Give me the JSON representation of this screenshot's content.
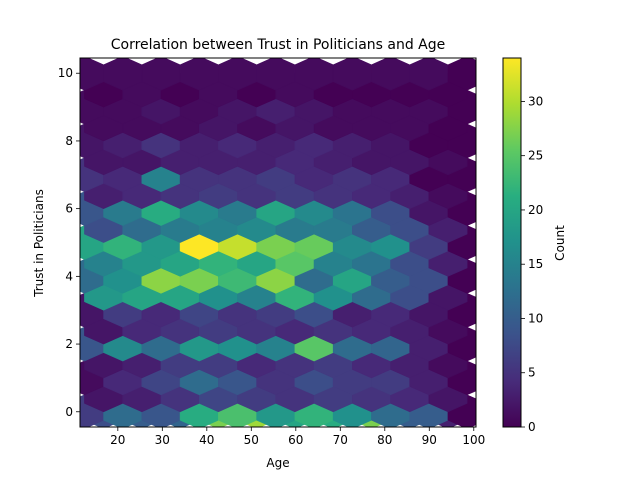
{
  "chart_data": {
    "type": "hexbin",
    "title": "Correlation between Trust in Politicians and Age",
    "xlabel": "Age",
    "ylabel": "Trust in Politicians",
    "xlim": [
      11.5,
      100.5
    ],
    "ylim": [
      -0.45,
      10.45
    ],
    "xticks": [
      20,
      30,
      40,
      50,
      60,
      70,
      80,
      90,
      100
    ],
    "yticks": [
      0,
      2,
      4,
      6,
      8,
      10
    ],
    "grid": false,
    "colormap": "viridis",
    "colorbar": {
      "label": "Count",
      "min": 0,
      "max": 34,
      "ticks": [
        0,
        5,
        10,
        15,
        20,
        25,
        30
      ]
    },
    "hex_centers_x_even": [
      16.8,
      25.4,
      34.0,
      42.6,
      51.2,
      59.8,
      68.4,
      77.0,
      85.6,
      94.2
    ],
    "hex_centers_x_odd": [
      12.5,
      21.1,
      29.7,
      38.3,
      46.9,
      55.5,
      64.1,
      72.7,
      81.3,
      89.9,
      98.5
    ],
    "rows": [
      {
        "y": 0.0,
        "type": "even",
        "counts": [
          8,
          10,
          11,
          27,
          29,
          20,
          21,
          27,
          10,
          3
        ]
      },
      {
        "y": 0.0,
        "type": "odd",
        "counts": [
          6,
          12,
          9,
          21,
          24,
          18,
          22,
          17,
          12,
          10,
          0
        ]
      },
      {
        "y": 0.5,
        "type": "even",
        "counts": [
          2,
          3,
          5,
          7,
          6,
          5,
          6,
          5,
          4,
          2
        ]
      },
      {
        "y": 1.0,
        "type": "odd",
        "counts": [
          1,
          4,
          7,
          12,
          9,
          5,
          8,
          6,
          6,
          3,
          0
        ]
      },
      {
        "y": 1.5,
        "type": "even",
        "counts": [
          2,
          3,
          6,
          6,
          4,
          5,
          6,
          4,
          3,
          1
        ]
      },
      {
        "y": 2.0,
        "type": "odd",
        "counts": [
          9,
          16,
          12,
          18,
          17,
          15,
          25,
          12,
          11,
          3,
          0
        ]
      },
      {
        "y": 2.5,
        "type": "even",
        "counts": [
          2,
          4,
          5,
          6,
          5,
          4,
          5,
          4,
          3,
          1
        ]
      },
      {
        "y": 3.0,
        "type": "odd",
        "counts": [
          2,
          6,
          4,
          7,
          5,
          6,
          8,
          3,
          4,
          2,
          0
        ]
      },
      {
        "y": 3.5,
        "type": "even",
        "counts": [
          18,
          20,
          20,
          17,
          15,
          22,
          17,
          12,
          8,
          2
        ]
      },
      {
        "y": 4.0,
        "type": "odd",
        "counts": [
          12,
          17,
          28,
          27,
          23,
          28,
          12,
          20,
          10,
          8,
          0
        ]
      },
      {
        "y": 4.5,
        "type": "even",
        "counts": [
          15,
          18,
          20,
          22,
          20,
          25,
          15,
          13,
          8,
          3
        ]
      },
      {
        "y": 5.0,
        "type": "odd",
        "counts": [
          20,
          22,
          18,
          34,
          31,
          27,
          26,
          16,
          17,
          6,
          0
        ]
      },
      {
        "y": 5.5,
        "type": "even",
        "counts": [
          8,
          12,
          14,
          15,
          16,
          14,
          14,
          10,
          8,
          3
        ]
      },
      {
        "y": 6.0,
        "type": "odd",
        "counts": [
          9,
          14,
          21,
          16,
          14,
          20,
          16,
          13,
          8,
          2,
          0
        ]
      },
      {
        "y": 6.5,
        "type": "even",
        "counts": [
          3,
          4,
          5,
          6,
          5,
          6,
          5,
          4,
          3,
          1
        ]
      },
      {
        "y": 7.0,
        "type": "odd",
        "counts": [
          5,
          4,
          15,
          5,
          5,
          6,
          4,
          5,
          4,
          0,
          0
        ]
      },
      {
        "y": 7.5,
        "type": "even",
        "counts": [
          2,
          2,
          3,
          3,
          3,
          4,
          3,
          2,
          2,
          1
        ]
      },
      {
        "y": 8.0,
        "type": "odd",
        "counts": [
          2,
          3,
          5,
          3,
          4,
          3,
          4,
          3,
          2,
          0,
          0
        ]
      },
      {
        "y": 8.5,
        "type": "even",
        "counts": [
          1,
          1,
          1,
          2,
          1,
          2,
          1,
          1,
          1,
          0
        ]
      },
      {
        "y": 9.0,
        "type": "odd",
        "counts": [
          1,
          1,
          2,
          1,
          2,
          3,
          2,
          1,
          1,
          1,
          0
        ]
      },
      {
        "y": 9.5,
        "type": "even",
        "counts": [
          0,
          1,
          0,
          1,
          0,
          1,
          0,
          0,
          0,
          0
        ]
      },
      {
        "y": 10.0,
        "type": "odd",
        "counts": [
          1,
          1,
          1,
          1,
          1,
          1,
          1,
          1,
          1,
          1,
          0
        ]
      }
    ]
  }
}
